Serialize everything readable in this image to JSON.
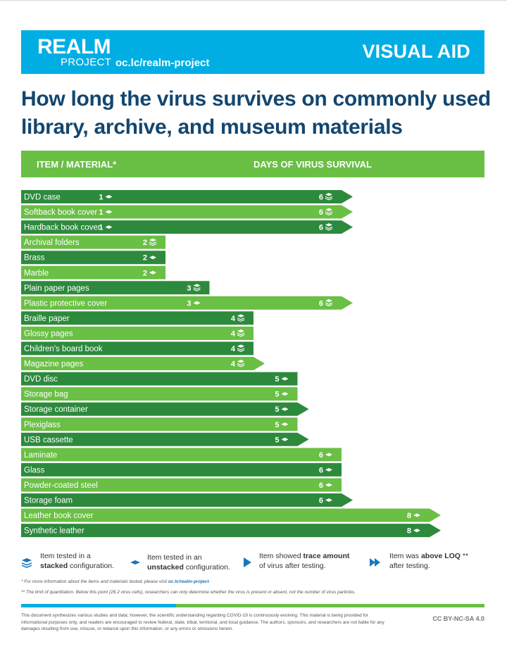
{
  "header": {
    "logo_main": "REALM",
    "logo_sub": "PROJECT",
    "url": "oc.lc/realm-project",
    "visual_aid": "VISUAL AID"
  },
  "title": "How long the virus survives on commonly used library, archive, and museum materials",
  "table_header": {
    "item_label": "ITEM / MATERIAL*",
    "days_label": "DAYS OF VIRUS SURVIVAL"
  },
  "colors": {
    "blue": "#00aee3",
    "dark_green": "#2d8a3d",
    "light_green": "#6abf45",
    "title_navy": "#13466f",
    "icon_blue": "#1a75bb"
  },
  "chart_data": {
    "type": "bar",
    "orientation": "horizontal",
    "x_unit": "days",
    "rows": [
      {
        "label": "DVD case",
        "min": 1,
        "max": 6,
        "min_icon": "unstacked",
        "max_icon": "stacked",
        "end": "trace"
      },
      {
        "label": "Softback book cover",
        "min": 1,
        "max": 6,
        "min_icon": "unstacked",
        "max_icon": "stacked",
        "end": "trace"
      },
      {
        "label": "Hardback book cover",
        "min": 1,
        "max": 6,
        "min_icon": "unstacked",
        "max_icon": "stacked",
        "end": "trace"
      },
      {
        "label": "Archival folders",
        "min": null,
        "max": 2,
        "min_icon": null,
        "max_icon": "stacked",
        "end": "none"
      },
      {
        "label": "Brass",
        "min": null,
        "max": 2,
        "min_icon": null,
        "max_icon": "unstacked",
        "end": "none"
      },
      {
        "label": "Marble",
        "min": null,
        "max": 2,
        "min_icon": null,
        "max_icon": "unstacked",
        "end": "none"
      },
      {
        "label": "Plain paper pages",
        "min": null,
        "max": 3,
        "min_icon": null,
        "max_icon": "stacked",
        "end": "none"
      },
      {
        "label": "Plastic protective cover",
        "min": 3,
        "max": 6,
        "min_icon": "unstacked",
        "max_icon": "stacked",
        "end": "trace"
      },
      {
        "label": "Braille paper",
        "min": null,
        "max": 4,
        "min_icon": null,
        "max_icon": "stacked",
        "end": "none"
      },
      {
        "label": "Glossy pages",
        "min": null,
        "max": 4,
        "min_icon": null,
        "max_icon": "stacked",
        "end": "none"
      },
      {
        "label": "Children's board book",
        "min": null,
        "max": 4,
        "min_icon": null,
        "max_icon": "stacked",
        "end": "none"
      },
      {
        "label": "Magazine pages",
        "min": null,
        "max": 4,
        "min_icon": null,
        "max_icon": "stacked",
        "end": "trace"
      },
      {
        "label": "DVD disc",
        "min": null,
        "max": 5,
        "min_icon": null,
        "max_icon": "unstacked",
        "end": "none"
      },
      {
        "label": "Storage bag",
        "min": null,
        "max": 5,
        "min_icon": null,
        "max_icon": "unstacked",
        "end": "none"
      },
      {
        "label": "Storage container",
        "min": null,
        "max": 5,
        "min_icon": null,
        "max_icon": "unstacked",
        "end": "trace"
      },
      {
        "label": "Plexiglass",
        "min": null,
        "max": 5,
        "min_icon": null,
        "max_icon": "unstacked",
        "end": "none"
      },
      {
        "label": "USB cassette",
        "min": null,
        "max": 5,
        "min_icon": null,
        "max_icon": "unstacked",
        "end": "trace"
      },
      {
        "label": "Laminate",
        "min": null,
        "max": 6,
        "min_icon": null,
        "max_icon": "unstacked",
        "end": "none"
      },
      {
        "label": "Glass",
        "min": null,
        "max": 6,
        "min_icon": null,
        "max_icon": "unstacked",
        "end": "none"
      },
      {
        "label": "Powder-coated steel",
        "min": null,
        "max": 6,
        "min_icon": null,
        "max_icon": "unstacked",
        "end": "none"
      },
      {
        "label": "Storage foam",
        "min": null,
        "max": 6,
        "min_icon": null,
        "max_icon": "unstacked",
        "end": "trace"
      },
      {
        "label": "Leather book cover",
        "min": null,
        "max": 8,
        "min_icon": null,
        "max_icon": "unstacked",
        "end": "trace"
      },
      {
        "label": "Synthetic leather",
        "min": null,
        "max": 8,
        "min_icon": null,
        "max_icon": "unstacked",
        "end": "trace"
      }
    ]
  },
  "legend": {
    "stacked": {
      "line1": "Item tested in a",
      "line2_bold": "stacked",
      "line2_rest": " configuration."
    },
    "unstacked": {
      "line1": "Item tested in an",
      "line2_bold": "unstacked",
      "line2_rest": " configuration."
    },
    "trace": {
      "line1_pre": "Item showed ",
      "line1_bold": "trace amount",
      "line2": "of virus after testing."
    },
    "loq": {
      "line1_pre": "Item was ",
      "line1_bold": "above LOQ",
      "line1_post": " **",
      "line2": "after testing."
    }
  },
  "footnotes": {
    "fn1_text": "* For more information about the items and materials tested, please visit ",
    "fn1_link": "oc.lc/realm-project",
    "fn1_end": ".",
    "fn2": "** The limit of quantitation. Below this point (26.2 virus cells), researchers  can only determine whether the virus is present or absent, not the number of virus particles."
  },
  "disclaimer": "This document synthesizes various studies and data; however, the scientific understanding regarding COVID-19 is continuously evolving. This material is being provided for informational purposes only, and readers are encouraged to review federal, state, tribal, territorial, and local guidance. The authors, sponsors, and researchers are not liable for any damages resulting from use, misuse, or reliance upon this information, or any errors or omissions herein.",
  "license": "CC BY-NC-SA 4.0"
}
